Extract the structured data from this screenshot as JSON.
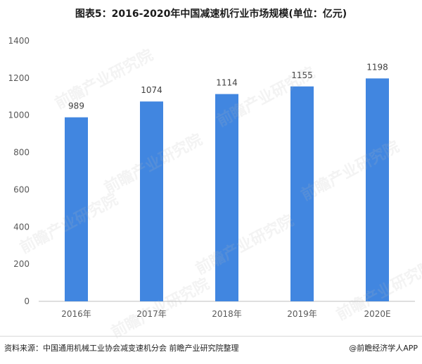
{
  "title": "图表5：2016-2020年中国减速机行业市场规模(单位：亿元)",
  "watermark": "前瞻产业研究院",
  "source": "资料来源：中国通用机械工业协会减变速机分会 前瞻产业研究院整理",
  "credit": "@前瞻经济学人APP",
  "colors": {
    "bar": "#4186e0",
    "axis": "#bfbfbf"
  },
  "chart_data": {
    "type": "bar",
    "title": "图表5：2016-2020年中国减速机行业市场规模(单位：亿元)",
    "categories": [
      "2016年",
      "2017年",
      "2018年",
      "2019年",
      "2020E"
    ],
    "values": [
      989,
      1074,
      1114,
      1155,
      1198
    ],
    "data_labels": [
      "989",
      "1074",
      "1114",
      "1155",
      "1198"
    ],
    "ylim": [
      0,
      1400
    ],
    "yticks": [
      0,
      200,
      400,
      600,
      800,
      1000,
      1200,
      1400
    ],
    "xlabel": "",
    "ylabel": "",
    "grid": false,
    "legend": "none"
  }
}
